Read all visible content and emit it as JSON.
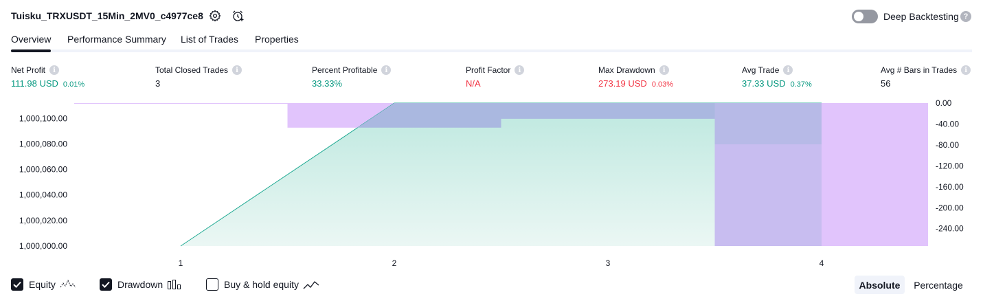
{
  "header": {
    "strategy_name": "Tuisku_TRXUSDT_15Min_2MV0_c4977ce8",
    "deep_backtesting_label": "Deep Backtesting",
    "help_glyph": "?"
  },
  "tabs": [
    {
      "label": "Overview",
      "active": true
    },
    {
      "label": "Performance Summary",
      "active": false
    },
    {
      "label": "List of Trades",
      "active": false
    },
    {
      "label": "Properties",
      "active": false
    }
  ],
  "metrics": {
    "net_profit": {
      "label": "Net Profit",
      "value": "111.98 USD",
      "sub": "0.01%"
    },
    "total_closed_trades": {
      "label": "Total Closed Trades",
      "value": "3"
    },
    "percent_profitable": {
      "label": "Percent Profitable",
      "value": "33.33%"
    },
    "profit_factor": {
      "label": "Profit Factor",
      "value": "N/A"
    },
    "max_drawdown": {
      "label": "Max Drawdown",
      "value": "273.19 USD",
      "sub": "0.03%"
    },
    "avg_trade": {
      "label": "Avg Trade",
      "value": "37.33 USD",
      "sub": "0.37%"
    },
    "avg_bars": {
      "label": "Avg # Bars in Trades",
      "value": "56"
    }
  },
  "chart_data": {
    "type": "area",
    "left_axis_ticks": [
      "1,000,100.00",
      "1,000,080.00",
      "1,000,060.00",
      "1,000,040.00",
      "1,000,020.00",
      "1,000,000.00"
    ],
    "right_axis_ticks": [
      "0.00",
      "-40.00",
      "-80.00",
      "-120.00",
      "-160.00",
      "-200.00",
      "-240.00"
    ],
    "x_ticks": [
      "1",
      "2",
      "3",
      "4"
    ],
    "ylim_left": [
      1000000,
      1000111.98
    ],
    "ylim_right": [
      -273.19,
      0
    ],
    "equity": {
      "x": [
        1,
        2,
        2.5,
        3,
        3.5,
        4
      ],
      "y": [
        1000000,
        1000111.98,
        1000111.98,
        1000111.98,
        1000111.98,
        1000111.98
      ]
    },
    "drawdown": [
      {
        "x_start": 1.5,
        "x_end": 2.5,
        "value": -47
      },
      {
        "x_start": 2.5,
        "x_end": 3.5,
        "value": -30
      },
      {
        "x_start": 3.5,
        "x_end": 4.5,
        "value": -273.19
      }
    ],
    "colors": {
      "equity_line": "#22ab94",
      "equity_fill_top": "#bde8df",
      "equity_fill_bottom": "#ebf7f4",
      "drawdown_fill": "#e1c4fc",
      "overlap_fill": "#aab8e0",
      "overlap_fill_dark": "#c8bdf0"
    }
  },
  "footer": {
    "equity_label": "Equity",
    "drawdown_label": "Drawdown",
    "buy_hold_label": "Buy & hold equity",
    "absolute_label": "Absolute",
    "percentage_label": "Percentage",
    "equity_checked": true,
    "drawdown_checked": true,
    "buy_hold_checked": false
  }
}
